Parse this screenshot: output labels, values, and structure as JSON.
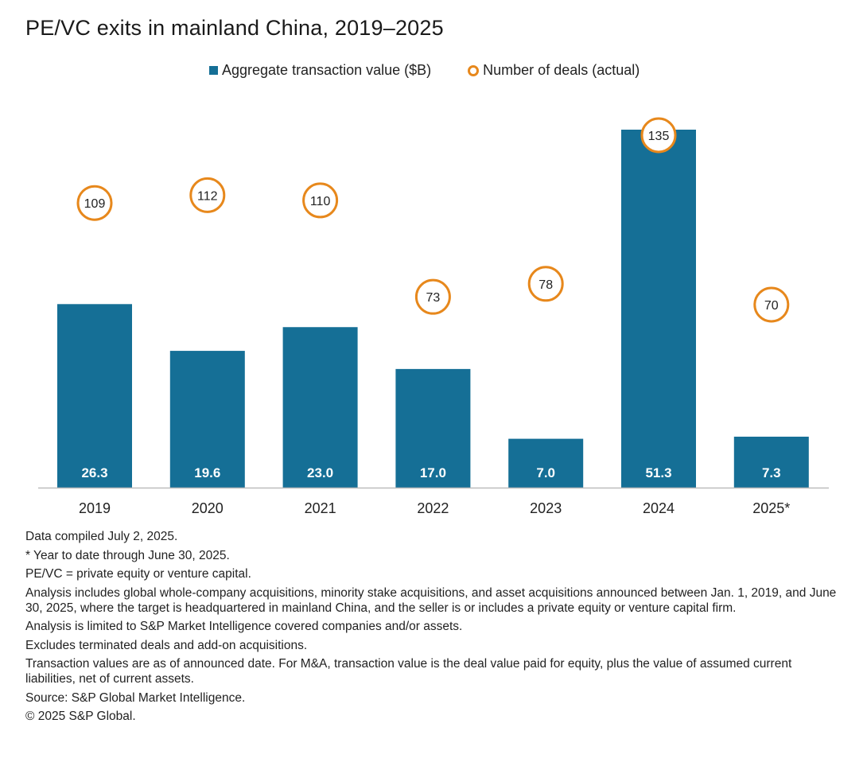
{
  "title": "PE/VC exits in mainland China, 2019–2025",
  "legend": {
    "bars_label": "Aggregate transaction value ($B)",
    "deals_label": "Number of deals (actual)"
  },
  "colors": {
    "bar": "#156f96",
    "deal_ring": "#e7881c",
    "axis": "#bcbcbc"
  },
  "chart_data": {
    "type": "bar",
    "categories": [
      "2019",
      "2020",
      "2021",
      "2022",
      "2023",
      "2024",
      "2025*"
    ],
    "series": [
      {
        "name": "Aggregate transaction value ($B)",
        "type": "bar",
        "values": [
          26.3,
          19.6,
          23.0,
          17.0,
          7.0,
          51.3,
          7.3
        ]
      },
      {
        "name": "Number of deals (actual)",
        "type": "scatter",
        "values": [
          109,
          112,
          110,
          73,
          78,
          135,
          70
        ]
      }
    ],
    "value_ylim": [
      0,
      51.3
    ],
    "deals_ylim": [
      0,
      135
    ],
    "grid": false,
    "legend_position": "top"
  },
  "notes": [
    "Data compiled July 2, 2025.",
    "* Year to date through June 30, 2025.",
    "PE/VC = private equity or venture capital.",
    "Analysis includes global whole-company acquisitions, minority stake acquisitions, and asset acquisitions announced between Jan. 1, 2019, and June 30, 2025, where the target is headquartered in mainland China, and the seller is or includes a private equity or venture capital firm.",
    "Analysis is limited to S&P Market Intelligence covered companies and/or assets.",
    "Excludes terminated deals and add-on acquisitions.",
    "Transaction values are as of announced date. For M&A, transaction value is the deal value paid for equity, plus the value of assumed current liabilities, net of current assets.",
    "Source: S&P Global Market Intelligence.",
    "© 2025 S&P Global."
  ]
}
